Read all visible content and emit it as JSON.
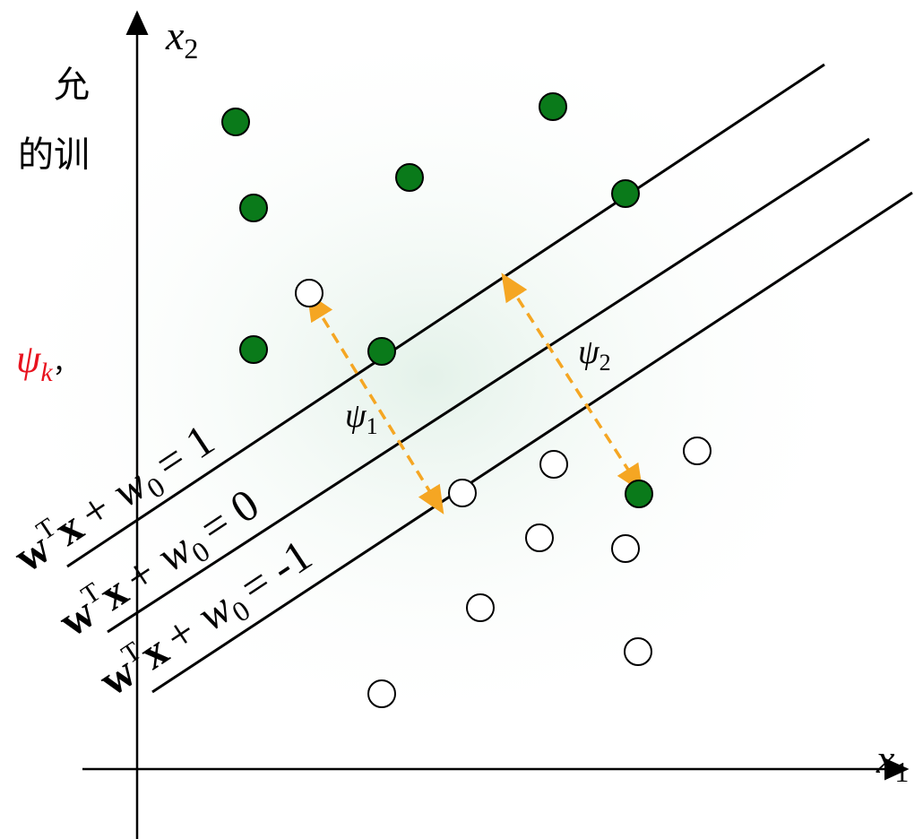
{
  "side_text": [
    "允",
    "的训"
  ],
  "psi_k": {
    "base": "ψ",
    "sub": "k",
    "punct": "，"
  },
  "axes": {
    "x1": {
      "base": "x",
      "sub": "1"
    },
    "x2": {
      "base": "x",
      "sub": "2"
    }
  },
  "lines": [
    {
      "w": "w",
      "sup": "T",
      "x": "x",
      "plus": "+ w",
      "sub": "0",
      "rhs": "= 1"
    },
    {
      "w": "w",
      "sup": "T",
      "x": "x",
      "plus": "+ w",
      "sub": "0",
      "rhs": "= 0"
    },
    {
      "w": "w",
      "sup": "T",
      "x": "x",
      "plus": "+ w",
      "sub": "0",
      "rhs": "= -1"
    }
  ],
  "margins": [
    {
      "base": "ψ",
      "sub": "1"
    },
    {
      "base": "ψ",
      "sub": "2"
    }
  ]
}
